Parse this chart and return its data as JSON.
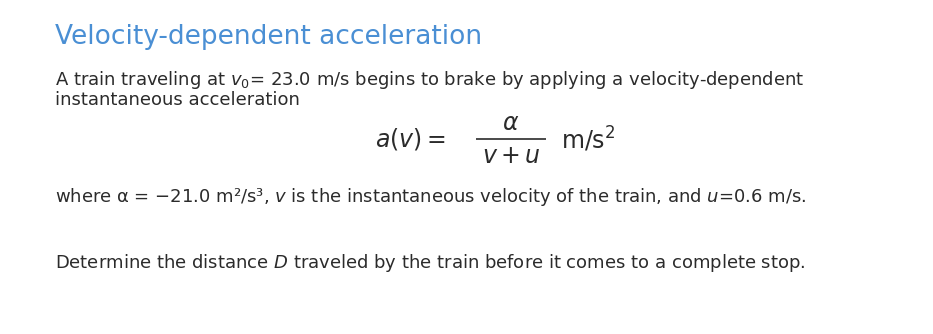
{
  "title": "Velocity-dependent acceleration",
  "title_color": "#4a8fd4",
  "title_fontsize": 19,
  "bg_color": "#ffffff",
  "text_color": "#2b2b2b",
  "body_fontsize": 13.0,
  "eq_fontsize": 17,
  "line1": "A train traveling at $v_0$= 23.0 m/s begins to brake by applying a velocity-dependent",
  "line2": "instantaneous acceleration",
  "where_line": "where α = −21.0 m²/s³, $v$ is the instantaneous velocity of the train, and $u$=0.6 m/s.",
  "det_line": "Determine the distance $D$ traveled by the train before it comes to a complete stop."
}
